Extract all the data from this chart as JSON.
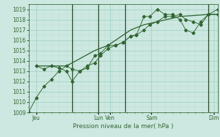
{
  "title": "Pression niveau de la mer( hPa )",
  "bg_color": "#cce8e0",
  "grid_major_color": "#99ccbb",
  "grid_minor_color": "#bbddd5",
  "line_color": "#336633",
  "vline_color": "#224422",
  "ylim": [
    1009,
    1019.5
  ],
  "yticks": [
    1009,
    1010,
    1011,
    1012,
    1013,
    1014,
    1015,
    1016,
    1017,
    1018,
    1019
  ],
  "xlabel": "Pression niveau de la mer( hPa )",
  "xtick_labels": [
    "Jeu",
    "Lun",
    "Ven",
    "Sam",
    "Dim"
  ],
  "xtick_positions": [
    0.04,
    0.37,
    0.43,
    0.65,
    0.98
  ],
  "vline_positions": [
    0.23,
    0.37,
    0.51,
    0.95
  ],
  "line1_x": [
    0.0,
    0.04,
    0.08,
    0.12,
    0.16,
    0.2,
    0.23,
    0.27,
    0.31,
    0.35,
    0.38,
    0.42,
    0.46,
    0.5,
    0.54,
    0.57,
    0.61,
    0.64,
    0.68,
    0.72,
    0.76,
    0.8,
    0.83,
    0.87,
    0.91,
    0.95,
    1.0
  ],
  "line1_y": [
    1009.0,
    1010.4,
    1011.5,
    1012.2,
    1013.0,
    1013.5,
    1013.2,
    1013.0,
    1013.5,
    1013.8,
    1014.5,
    1015.2,
    1015.5,
    1015.8,
    1016.4,
    1016.5,
    1017.0,
    1017.5,
    1017.8,
    1018.3,
    1018.3,
    1018.5,
    1018.0,
    1017.8,
    1017.5,
    1018.5,
    1019.0
  ],
  "line2_x": [
    0.04,
    0.08,
    0.12,
    0.16,
    0.2,
    0.23,
    0.27,
    0.31,
    0.35,
    0.38,
    0.42,
    0.46,
    0.5,
    0.54,
    0.57,
    0.61,
    0.64,
    0.68,
    0.72,
    0.76,
    0.8,
    0.83,
    0.87,
    0.91,
    0.95,
    1.0
  ],
  "line2_y": [
    1013.5,
    1013.2,
    1013.5,
    1013.3,
    1013.0,
    1012.0,
    1013.0,
    1013.3,
    1014.5,
    1014.7,
    1015.5,
    1015.5,
    1015.8,
    1016.4,
    1016.5,
    1018.3,
    1018.3,
    1019.0,
    1018.5,
    1018.5,
    1018.0,
    1017.0,
    1016.7,
    1017.8,
    1018.5,
    1018.5
  ],
  "line3_x": [
    0.04,
    0.2,
    0.35,
    0.42,
    0.54,
    0.61,
    0.8,
    0.95,
    1.0
  ],
  "line3_y": [
    1013.5,
    1013.5,
    1015.0,
    1015.5,
    1017.0,
    1017.5,
    1018.3,
    1018.5,
    1018.5
  ],
  "marker": "D",
  "markersize": 2.2,
  "linewidth_thin": 0.7,
  "linewidth_thick": 1.0
}
